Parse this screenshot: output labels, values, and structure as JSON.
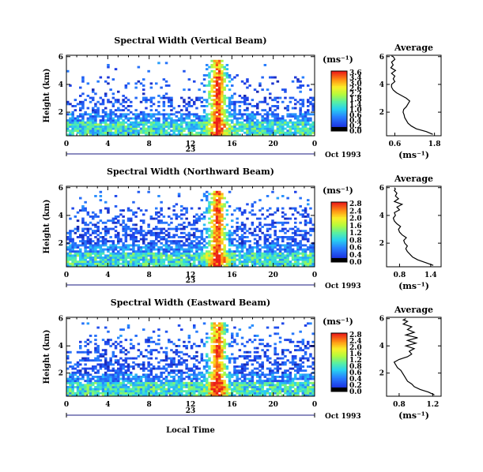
{
  "chart_data": [
    {
      "type": "heatmap",
      "title": "Spectral Width (Vertical Beam)",
      "ylabel": "Height (km)",
      "xticks": [
        "0",
        "4",
        "8",
        "12",
        "16",
        "20",
        "0"
      ],
      "yticks": [
        "2",
        "4",
        "6"
      ],
      "xlim": [
        0,
        24
      ],
      "ylim": [
        0.3,
        6.1
      ],
      "date_day": "23",
      "date_month": "Oct 1993",
      "colorbar": {
        "unit": "(ms⁻¹)",
        "labels": [
          "3.6",
          "3.4",
          "3.0",
          "2.6",
          "2.2",
          "1.8",
          "1.4",
          "1.0",
          "0.6",
          "0.4",
          "0.2",
          "0.0"
        ]
      },
      "average": {
        "title": "Average",
        "xlabel": "(ms⁻¹)",
        "xticks": [
          "0.6",
          "1.8"
        ],
        "xtick_values": [
          0.6,
          1.8
        ],
        "xlim": [
          0.35,
          2.0
        ],
        "yticks": [
          "2",
          "4",
          "6"
        ],
        "ylim": [
          0.3,
          6.1
        ],
        "profile_x": [
          1.75,
          1.55,
          1.25,
          1.1,
          1.0,
          0.95,
          0.9,
          0.88,
          0.85,
          0.87,
          0.95,
          1.0,
          1.05,
          0.95,
          0.8,
          0.65,
          0.55,
          0.5,
          0.5,
          0.6,
          0.55,
          0.6,
          0.5,
          0.62,
          0.48,
          0.55,
          0.5,
          0.55,
          0.6,
          0.58,
          0.55,
          0.5
        ],
        "profile_y": [
          0.4,
          0.6,
          0.8,
          1.0,
          1.2,
          1.4,
          1.6,
          1.8,
          2.0,
          2.2,
          2.4,
          2.6,
          2.8,
          3.0,
          3.2,
          3.4,
          3.6,
          3.8,
          4.0,
          4.2,
          4.4,
          4.6,
          4.8,
          5.0,
          5.2,
          5.4,
          5.6,
          5.7,
          5.8,
          5.9,
          6.0,
          6.05
        ]
      }
    },
    {
      "type": "heatmap",
      "title": "Spectral Width (Northward Beam)",
      "ylabel": "Height (km)",
      "xticks": [
        "0",
        "4",
        "8",
        "12",
        "16",
        "20",
        "0"
      ],
      "yticks": [
        "2",
        "4",
        "6"
      ],
      "xlim": [
        0,
        24
      ],
      "ylim": [
        0.3,
        6.1
      ],
      "date_day": "23",
      "date_month": "Oct 1993",
      "colorbar": {
        "unit": "(ms⁻¹)",
        "labels": [
          "2.8",
          "2.4",
          "2.0",
          "1.6",
          "1.2",
          "0.8",
          "0.6",
          "0.4",
          "0.0"
        ]
      },
      "average": {
        "title": "Average",
        "xlabel": "(ms⁻¹)",
        "xticks": [
          "0.8",
          "1.4"
        ],
        "xtick_values": [
          0.8,
          1.4
        ],
        "xlim": [
          0.55,
          1.6
        ],
        "yticks": [
          "2",
          "4",
          "6"
        ],
        "ylim": [
          0.3,
          6.1
        ],
        "profile_x": [
          1.45,
          1.3,
          1.15,
          1.05,
          1.0,
          0.95,
          0.92,
          0.95,
          0.9,
          0.88,
          0.93,
          0.85,
          0.8,
          0.78,
          0.82,
          0.75,
          0.7,
          0.68,
          0.72,
          0.7,
          0.8,
          0.75,
          0.85,
          0.7,
          0.78,
          0.72,
          0.75,
          0.7,
          0.72,
          0.7
        ],
        "profile_y": [
          0.4,
          0.6,
          0.8,
          1.0,
          1.2,
          1.4,
          1.6,
          1.8,
          2.0,
          2.2,
          2.4,
          2.6,
          2.8,
          3.0,
          3.2,
          3.4,
          3.6,
          3.8,
          4.0,
          4.2,
          4.4,
          4.6,
          4.8,
          5.0,
          5.2,
          5.4,
          5.6,
          5.8,
          5.9,
          6.0
        ]
      }
    },
    {
      "type": "heatmap",
      "title": "Spectral Width (Eastward Beam)",
      "ylabel": "Height (km)",
      "xlabel": "Local Time",
      "xticks": [
        "0",
        "4",
        "8",
        "12",
        "16",
        "20",
        "0"
      ],
      "yticks": [
        "2",
        "4",
        "6"
      ],
      "xlim": [
        0,
        24
      ],
      "ylim": [
        0.3,
        6.1
      ],
      "date_day": "23",
      "date_month": "Oct 1993",
      "colorbar": {
        "unit": "(ms⁻¹)",
        "labels": [
          "2.8",
          "2.4",
          "2.0",
          "1.6",
          "1.2",
          "0.8",
          "0.6",
          "0.4",
          "0.2",
          "0.0"
        ]
      },
      "average": {
        "title": "Average",
        "xlabel": "(ms⁻¹)",
        "xticks": [
          "0.8",
          "1.2"
        ],
        "xtick_values": [
          0.8,
          1.2
        ],
        "xlim": [
          0.65,
          1.3
        ],
        "yticks": [
          "2",
          "4",
          "6"
        ],
        "ylim": [
          0.3,
          6.1
        ],
        "profile_x": [
          1.22,
          1.15,
          1.05,
          0.98,
          0.95,
          0.9,
          0.88,
          0.86,
          0.84,
          0.82,
          0.78,
          0.76,
          0.74,
          0.8,
          0.9,
          0.95,
          0.92,
          0.98,
          0.88,
          1.0,
          0.9,
          1.02,
          0.88,
          0.98,
          0.9,
          0.95,
          0.85,
          0.9,
          0.85,
          0.88
        ],
        "profile_y": [
          0.4,
          0.6,
          0.8,
          1.0,
          1.2,
          1.4,
          1.6,
          1.8,
          2.0,
          2.2,
          2.4,
          2.6,
          2.8,
          3.0,
          3.2,
          3.4,
          3.6,
          3.8,
          4.0,
          4.2,
          4.4,
          4.6,
          4.8,
          5.0,
          5.2,
          5.4,
          5.6,
          5.8,
          5.9,
          6.0
        ]
      }
    }
  ]
}
